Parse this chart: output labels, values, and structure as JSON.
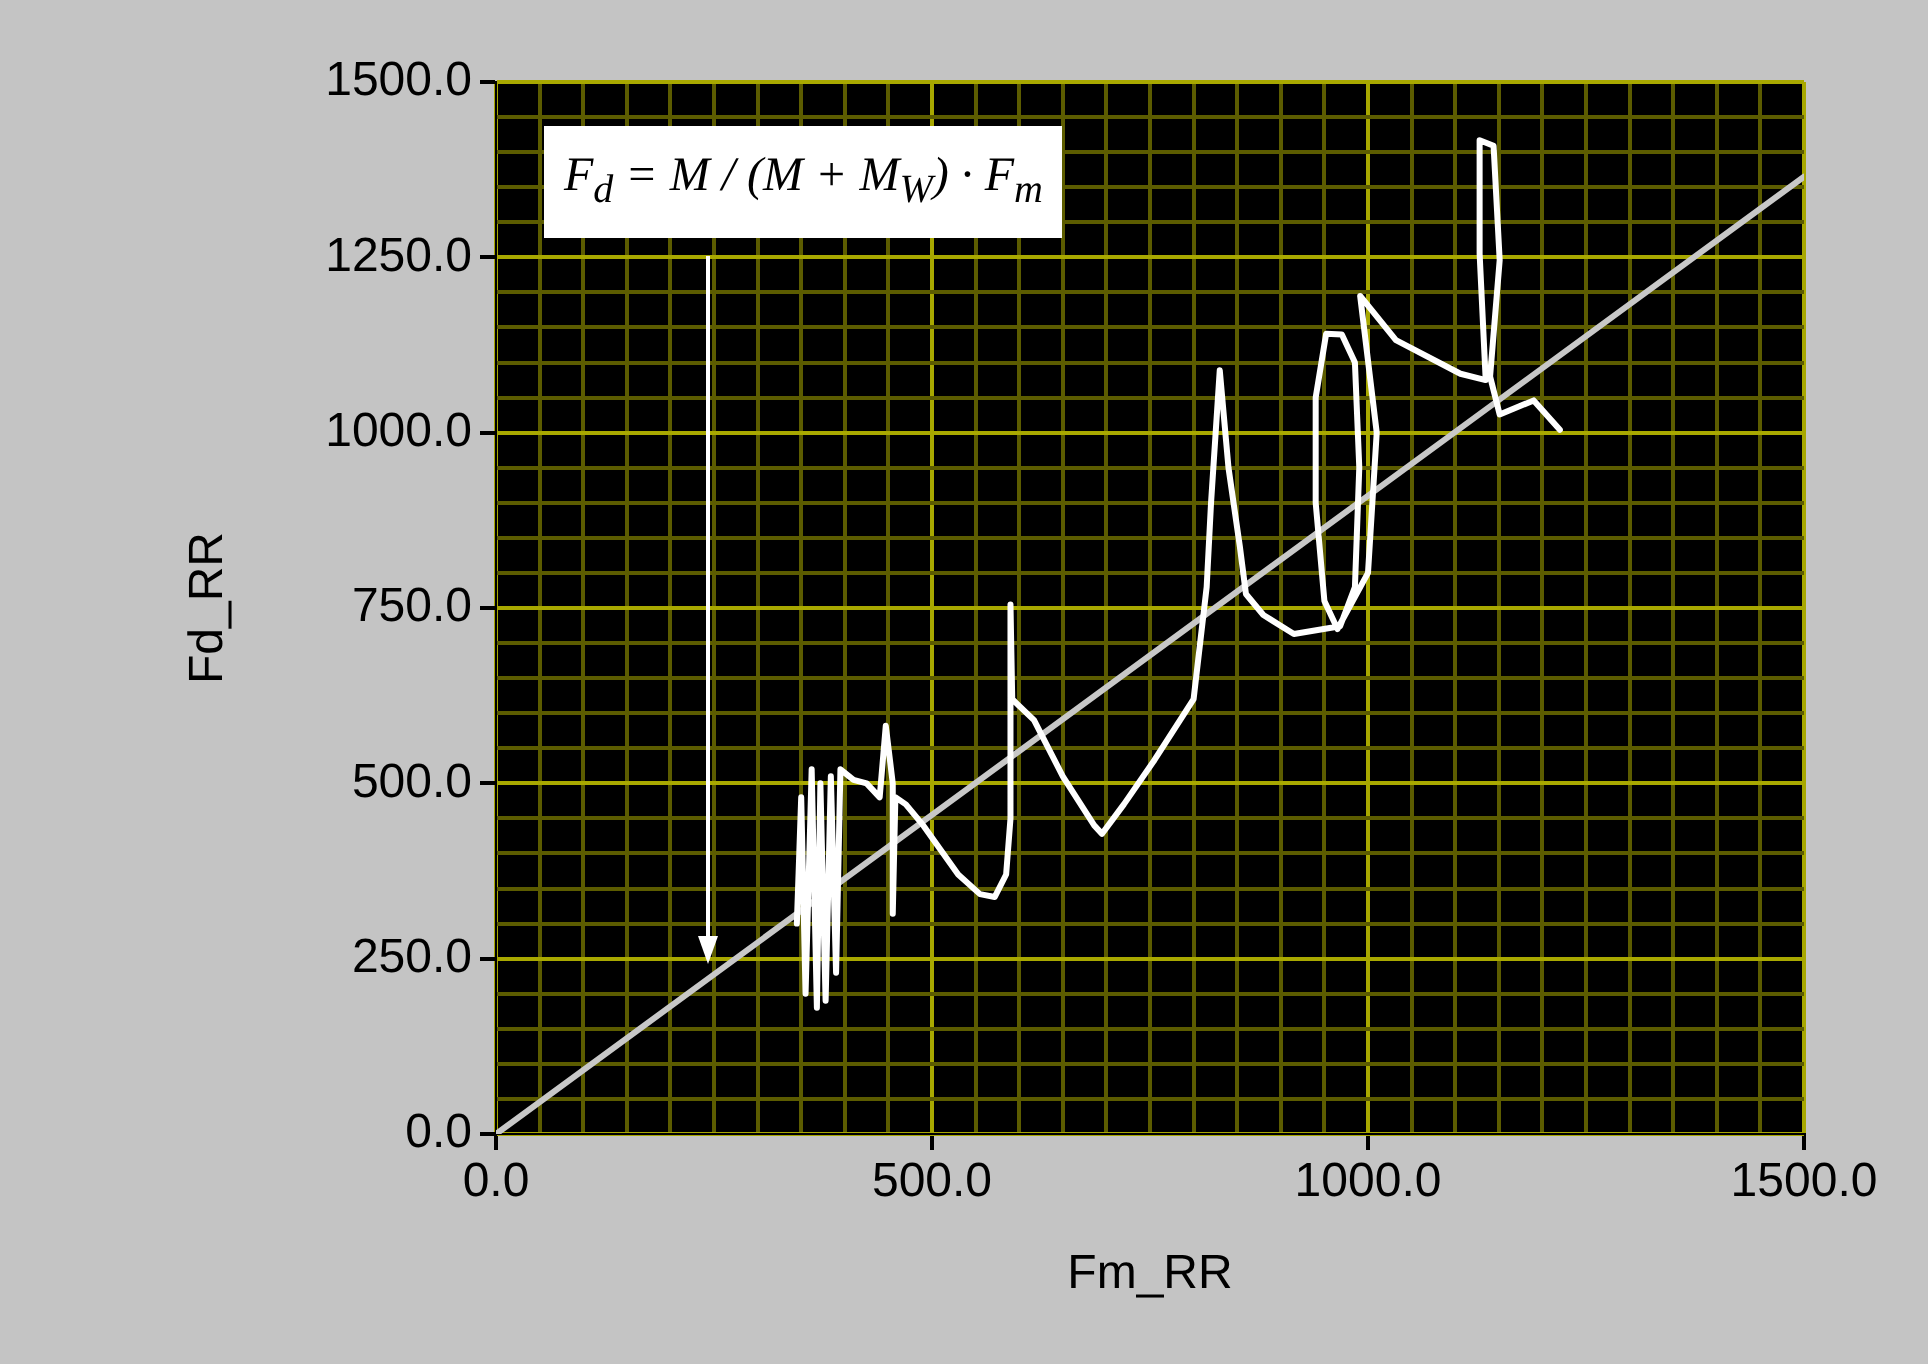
{
  "chart_data": {
    "type": "line",
    "xlabel": "Fm_RR",
    "ylabel": "Fd_RR",
    "xlim": [
      0,
      1500
    ],
    "ylim": [
      0,
      1500
    ],
    "xticks": [
      {
        "value": 0,
        "label": "0.0"
      },
      {
        "value": 50,
        "label": null
      },
      {
        "value": 100,
        "label": null
      },
      {
        "value": 150,
        "label": null
      },
      {
        "value": 200,
        "label": null
      },
      {
        "value": 250,
        "label": null
      },
      {
        "value": 300,
        "label": null
      },
      {
        "value": 350,
        "label": null
      },
      {
        "value": 400,
        "label": null
      },
      {
        "value": 450,
        "label": null
      },
      {
        "value": 500,
        "label": "500.0"
      },
      {
        "value": 550,
        "label": null
      },
      {
        "value": 600,
        "label": null
      },
      {
        "value": 650,
        "label": null
      },
      {
        "value": 700,
        "label": null
      },
      {
        "value": 750,
        "label": null
      },
      {
        "value": 800,
        "label": null
      },
      {
        "value": 850,
        "label": null
      },
      {
        "value": 900,
        "label": null
      },
      {
        "value": 950,
        "label": null
      },
      {
        "value": 1000,
        "label": "1000.0"
      },
      {
        "value": 1050,
        "label": null
      },
      {
        "value": 1100,
        "label": null
      },
      {
        "value": 1150,
        "label": null
      },
      {
        "value": 1200,
        "label": null
      },
      {
        "value": 1250,
        "label": null
      },
      {
        "value": 1300,
        "label": null
      },
      {
        "value": 1350,
        "label": null
      },
      {
        "value": 1400,
        "label": null
      },
      {
        "value": 1450,
        "label": null
      },
      {
        "value": 1500,
        "label": "1500.0"
      }
    ],
    "yticks": [
      {
        "value": 0,
        "label": "0.0"
      },
      {
        "value": 50,
        "label": null
      },
      {
        "value": 100,
        "label": null
      },
      {
        "value": 150,
        "label": null
      },
      {
        "value": 200,
        "label": null
      },
      {
        "value": 250,
        "label": "250.0"
      },
      {
        "value": 300,
        "label": null
      },
      {
        "value": 350,
        "label": null
      },
      {
        "value": 400,
        "label": null
      },
      {
        "value": 450,
        "label": null
      },
      {
        "value": 500,
        "label": "500.0"
      },
      {
        "value": 550,
        "label": null
      },
      {
        "value": 600,
        "label": null
      },
      {
        "value": 650,
        "label": null
      },
      {
        "value": 700,
        "label": null
      },
      {
        "value": 750,
        "label": "750.0"
      },
      {
        "value": 800,
        "label": null
      },
      {
        "value": 850,
        "label": null
      },
      {
        "value": 900,
        "label": null
      },
      {
        "value": 950,
        "label": null
      },
      {
        "value": 1000,
        "label": "1000.0"
      },
      {
        "value": 1050,
        "label": null
      },
      {
        "value": 1100,
        "label": null
      },
      {
        "value": 1150,
        "label": null
      },
      {
        "value": 1200,
        "label": null
      },
      {
        "value": 1250,
        "label": "1250.0"
      },
      {
        "value": 1300,
        "label": null
      },
      {
        "value": 1350,
        "label": null
      },
      {
        "value": 1400,
        "label": null
      },
      {
        "value": 1450,
        "label": null
      },
      {
        "value": 1500,
        "label": "1500.0"
      }
    ],
    "grid": true,
    "legend": false,
    "marker": "none",
    "line_style": "solid",
    "annotations": [
      "F$_{d}$ = M / (M + M$_{W}$) · F$_{m}$"
    ],
    "series": [
      {
        "color": "#ffffff",
        "x": [
          345,
          350,
          355,
          362,
          368,
          372,
          378,
          384,
          390,
          395,
          410,
          425,
          440,
          447,
          455,
          455,
          458,
          470,
          490,
          530,
          555,
          572,
          585,
          590,
          590,
          592,
          617,
          650,
          686,
          695,
          720,
          755,
          800,
          815,
          820,
          830,
          840,
          853,
          860,
          880,
          915,
          968,
          985,
          990,
          985,
          970,
          952,
          940,
          940,
          950,
          965,
          1000,
          1010,
          991,
          1032,
          1106,
          1135,
          1128,
          1128,
          1144,
          1151,
          1140,
          1151,
          1190,
          1220
        ],
        "values": [
          300,
          480,
          200,
          520,
          180,
          500,
          190,
          510,
          230,
          520,
          505,
          500,
          480,
          582,
          500,
          314,
          480,
          470,
          440,
          370,
          342,
          338,
          370,
          450,
          755,
          620,
          590,
          510,
          440,
          428,
          470,
          533,
          620,
          780,
          900,
          1089,
          950,
          838,
          770,
          740,
          713,
          724,
          780,
          950,
          1100,
          1140,
          1141,
          1050,
          900,
          760,
          720,
          800,
          1000,
          1195,
          1132,
          1084,
          1075,
          1255,
          1417,
          1409,
          1246,
          1080,
          1026,
          1046,
          1004
        ]
      },
      {
        "color": "#c8c8c8",
        "x": [
          0,
          1500
        ],
        "values": [
          0,
          1365
        ]
      }
    ]
  }
}
